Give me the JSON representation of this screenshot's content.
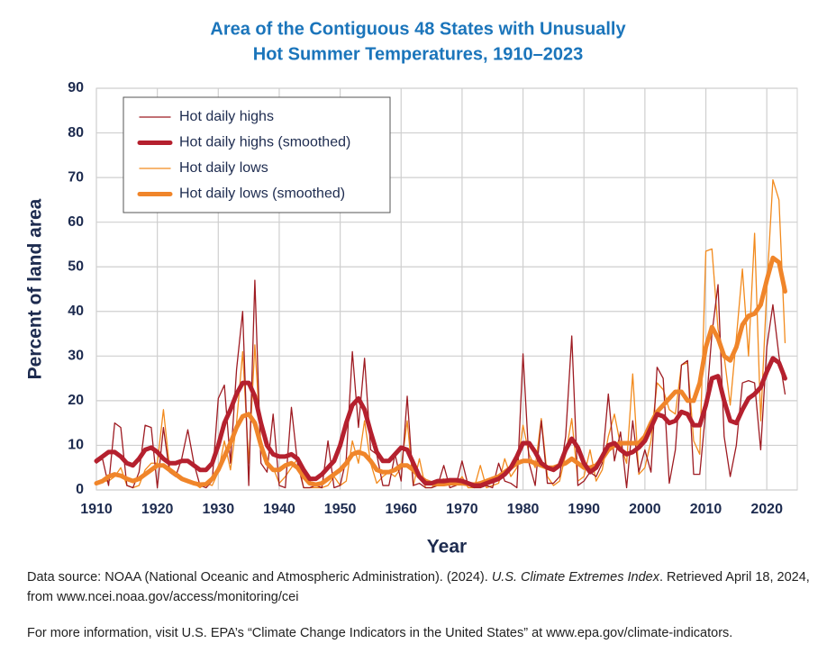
{
  "chart_data": {
    "type": "line",
    "title": [
      "Area of the Contiguous 48 States with Unusually",
      "Hot Summer Temperatures, 1910–2023"
    ],
    "x_label": "Year",
    "y_label": "Percent of land area",
    "xlim": [
      1910,
      2025
    ],
    "xticks": [
      1910,
      1920,
      1930,
      1940,
      1950,
      1960,
      1970,
      1980,
      1990,
      2000,
      2010,
      2020
    ],
    "ylim": [
      0,
      90
    ],
    "yticks": [
      0,
      10,
      20,
      30,
      40,
      50,
      60,
      70,
      80,
      90
    ],
    "grid": true,
    "legend": "upper left",
    "x": [
      1910,
      1911,
      1912,
      1913,
      1914,
      1915,
      1916,
      1917,
      1918,
      1919,
      1920,
      1921,
      1922,
      1923,
      1924,
      1925,
      1926,
      1927,
      1928,
      1929,
      1930,
      1931,
      1932,
      1933,
      1934,
      1935,
      1936,
      1937,
      1938,
      1939,
      1940,
      1941,
      1942,
      1943,
      1944,
      1945,
      1946,
      1947,
      1948,
      1949,
      1950,
      1951,
      1952,
      1953,
      1954,
      1955,
      1956,
      1957,
      1958,
      1959,
      1960,
      1961,
      1962,
      1963,
      1964,
      1965,
      1966,
      1967,
      1968,
      1969,
      1970,
      1971,
      1972,
      1973,
      1974,
      1975,
      1976,
      1977,
      1978,
      1979,
      1980,
      1981,
      1982,
      1983,
      1984,
      1985,
      1986,
      1987,
      1988,
      1989,
      1990,
      1991,
      1992,
      1993,
      1994,
      1995,
      1996,
      1997,
      1998,
      1999,
      2000,
      2001,
      2002,
      2003,
      2004,
      2005,
      2006,
      2007,
      2008,
      2009,
      2010,
      2011,
      2012,
      2013,
      2014,
      2015,
      2016,
      2017,
      2018,
      2019,
      2020,
      2021,
      2022,
      2023
    ],
    "series": [
      {
        "name": "Hot daily highs",
        "color": "#9e1b22",
        "width": 1.3,
        "values": [
          6,
          7,
          1,
          15,
          14,
          1,
          0.5,
          4,
          14.5,
          14,
          0.5,
          14,
          4,
          3,
          7,
          13.5,
          6,
          1,
          0.5,
          2,
          20.5,
          23.5,
          6,
          27,
          40,
          1,
          47,
          6,
          4,
          17,
          1,
          0.5,
          18.5,
          6,
          0.5,
          0.5,
          1,
          0.5,
          11,
          0.5,
          1,
          7,
          31,
          14,
          29.5,
          9,
          8,
          1,
          1,
          8,
          2,
          21,
          1,
          1.5,
          0.5,
          0.5,
          1,
          5.5,
          0.5,
          1,
          6.5,
          1,
          0.5,
          0.5,
          1,
          0.5,
          6,
          2,
          1.5,
          0.5,
          30.5,
          6,
          1,
          15.5,
          1.5,
          1.5,
          3,
          12,
          34.5,
          1,
          2,
          4,
          3,
          6,
          21.5,
          6.5,
          13,
          0.5,
          15.5,
          4,
          9,
          4,
          27.5,
          25,
          1.5,
          9,
          28,
          29,
          3.5,
          3.5,
          18,
          35,
          46,
          12,
          3,
          10,
          24,
          24.5,
          24,
          9,
          32,
          41.5,
          30,
          21.5
        ]
      },
      {
        "name": "Hot daily highs (smoothed)",
        "color": "#b5202e",
        "width": 5,
        "values": [
          6.5,
          7.5,
          8.5,
          8.5,
          7.5,
          6,
          5.5,
          7,
          9,
          9.5,
          8.5,
          7,
          6,
          6,
          6.5,
          6.5,
          5.5,
          4.5,
          4.5,
          6,
          10,
          15,
          18,
          21.5,
          24,
          24,
          21,
          15,
          10,
          8,
          7.5,
          7.5,
          8,
          7,
          4.5,
          2.5,
          2.5,
          3.5,
          5,
          6.5,
          10,
          15,
          19,
          20.5,
          18,
          13,
          8.5,
          6.5,
          6.5,
          8,
          9.5,
          9,
          6,
          3,
          1.5,
          1.5,
          2,
          2,
          2.2,
          2.2,
          2,
          1.5,
          1,
          1,
          1.5,
          2,
          2.5,
          3.5,
          5,
          7.5,
          10.5,
          10.5,
          8.5,
          6,
          5,
          4.5,
          5.5,
          9,
          11.5,
          9.5,
          6,
          4,
          5,
          7.5,
          10,
          10.5,
          9,
          8,
          8.5,
          9.5,
          11,
          14,
          17,
          16.5,
          15,
          15.5,
          17.5,
          17,
          14.5,
          14.5,
          19,
          25,
          25.5,
          20,
          15.5,
          15,
          18,
          20.5,
          21.5,
          23,
          26.5,
          29.5,
          28.5,
          25
        ]
      },
      {
        "name": "Hot daily lows",
        "color": "#f28a1d",
        "width": 1.3,
        "values": [
          1.5,
          2,
          2,
          3,
          5,
          1,
          0.5,
          1,
          4.5,
          6,
          6,
          18,
          5,
          4,
          3,
          2,
          1.5,
          0.5,
          1.5,
          1,
          4,
          11,
          4.5,
          15,
          31,
          6,
          32.5,
          10,
          6,
          5,
          1.5,
          3,
          5,
          7,
          0.5,
          0.5,
          0.5,
          0.5,
          1,
          3,
          1,
          2,
          11,
          6,
          15.5,
          6,
          1.5,
          3,
          4,
          3,
          5,
          15.5,
          1,
          7,
          0.5,
          0.5,
          2,
          2.5,
          1.5,
          1,
          3,
          0.5,
          0.5,
          5.5,
          0.5,
          1,
          1.5,
          7,
          3,
          5,
          14.5,
          8,
          5,
          16,
          3,
          1,
          2,
          8,
          16,
          2,
          3,
          9,
          2,
          4.5,
          12,
          17,
          10,
          6,
          26,
          3.5,
          5,
          11,
          24,
          22.5,
          18,
          17,
          28,
          28.5,
          11,
          8,
          53.5,
          54,
          36,
          30,
          19,
          34,
          49.5,
          30,
          57.5,
          15.5,
          45,
          69.5,
          65,
          33
        ]
      },
      {
        "name": "Hot daily lows (smoothed)",
        "color": "#f0852a",
        "width": 5,
        "values": [
          1.5,
          2,
          3,
          3.5,
          3.2,
          2.5,
          2,
          2.5,
          3.5,
          4.5,
          5.5,
          5.5,
          4.5,
          3.5,
          2.5,
          2,
          1.5,
          1.2,
          1.3,
          2.5,
          4.5,
          7.5,
          10.5,
          14,
          16.5,
          17,
          15,
          10,
          6,
          4.5,
          4.5,
          5.5,
          6,
          5,
          3,
          1.5,
          1.2,
          1.5,
          2.5,
          3.5,
          4.5,
          6,
          8,
          8.5,
          8,
          6.5,
          4.5,
          4,
          4,
          4.5,
          5.5,
          5.5,
          4.5,
          3,
          2,
          1.5,
          1.3,
          1.3,
          1.5,
          1.5,
          1.5,
          1.3,
          1.2,
          1.5,
          2,
          2.5,
          3,
          4,
          5,
          6,
          6.5,
          6.5,
          6,
          5.5,
          5,
          5,
          5.5,
          6,
          7,
          6,
          5,
          5,
          5.5,
          7,
          9,
          10,
          10.5,
          10.5,
          10.5,
          10.5,
          12,
          15,
          17.5,
          19,
          20.5,
          22,
          22,
          20,
          20,
          24,
          32,
          36.5,
          34,
          30,
          29,
          32,
          37,
          39,
          39.5,
          41.5,
          47,
          52,
          51,
          44.5
        ]
      }
    ]
  },
  "footer": {
    "source_parts": [
      "Data source: NOAA (National Oceanic and Atmospheric Administration). (2024). ",
      "U.S. Climate Extremes Index",
      ". Retrieved April 18, 2024, from www.ncei.noaa.gov/access/monitoring/cei"
    ],
    "more_info": "For more information, visit U.S. EPA’s “Climate Change Indicators in the United States” at www.epa.gov/climate-indicators."
  }
}
